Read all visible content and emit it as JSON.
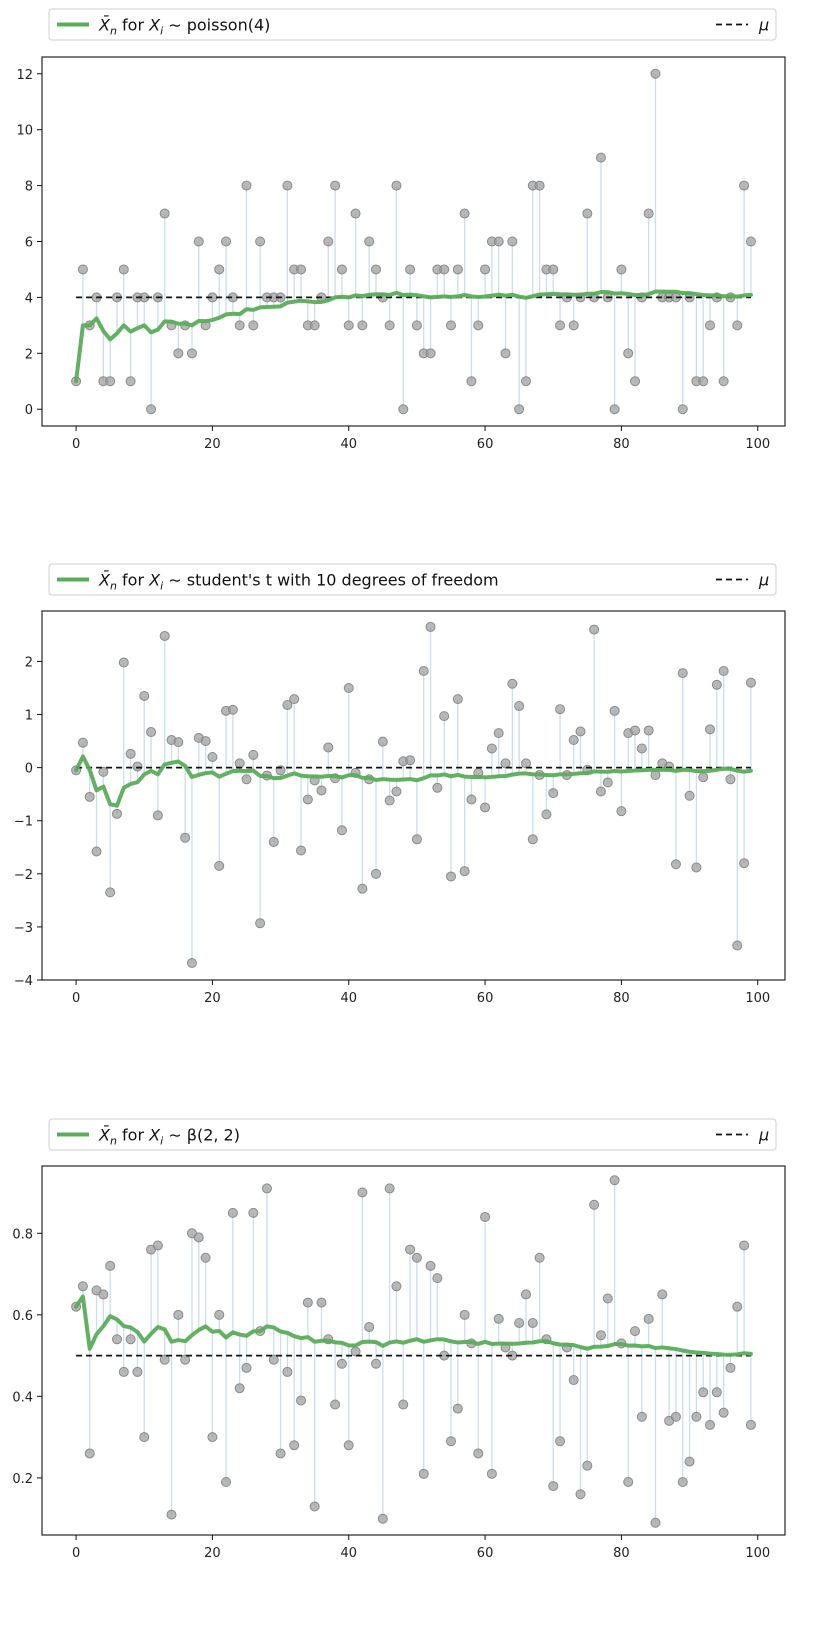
{
  "chart_data": [
    {
      "type": "scatter",
      "legend": {
        "series_label": "X̄n for Xi ~ poisson(4)",
        "prefix": "for",
        "distribution": "poisson(4)",
        "mu_label": "μ",
        "placement": "top"
      },
      "mu": 4,
      "xlim": [
        -5,
        104
      ],
      "ylim": [
        -0.6,
        12.6
      ],
      "xticks": [
        0,
        20,
        40,
        60,
        80,
        100
      ],
      "yticks": [
        0,
        2,
        4,
        6,
        8,
        10,
        12
      ],
      "colors": {
        "running_mean": "#5aac5a",
        "samples": "#9a9a9a",
        "stems": "#b8d3ea",
        "mu": "#111111"
      },
      "samples": [
        1,
        5,
        3,
        4,
        1,
        1,
        4,
        5,
        1,
        4,
        4,
        0,
        4,
        7,
        3,
        2,
        3,
        2,
        6,
        3,
        4,
        5,
        6,
        4,
        3,
        8,
        3,
        6,
        4,
        4,
        4,
        8,
        5,
        5,
        3,
        3,
        4,
        6,
        8,
        5,
        3,
        7,
        3,
        6,
        5,
        4,
        3,
        8,
        0,
        5,
        3,
        2,
        2,
        5,
        5,
        3,
        5,
        7,
        1,
        3,
        5,
        6,
        6,
        2,
        6,
        0,
        1,
        8,
        8,
        5,
        5,
        3,
        4,
        3,
        4,
        7,
        4,
        9,
        4,
        0,
        5,
        2,
        1,
        4,
        7,
        12,
        4,
        4,
        4,
        0,
        4,
        1,
        1,
        3,
        4,
        1,
        4,
        3,
        8,
        6
      ]
    },
    {
      "type": "scatter",
      "legend": {
        "series_label": "X̄n for Xi ~ student's t with 10 degrees of freedom",
        "prefix": "for",
        "distribution": "student's t with 10 degrees of freedom",
        "mu_label": "μ",
        "placement": "top"
      },
      "mu": 0,
      "xlim": [
        -5,
        104
      ],
      "ylim": [
        -4.0,
        2.95
      ],
      "xticks": [
        0,
        20,
        40,
        60,
        80,
        100
      ],
      "yticks": [
        -4,
        -3,
        -2,
        -1,
        0,
        1,
        2
      ],
      "colors": {
        "running_mean": "#5aac5a",
        "samples": "#9a9a9a",
        "stems": "#b8d3ea",
        "mu": "#111111"
      },
      "samples": [
        -0.05,
        0.47,
        -0.55,
        -1.58,
        -0.08,
        -2.35,
        -0.87,
        1.98,
        0.26,
        0.02,
        1.35,
        0.67,
        -0.9,
        2.48,
        0.52,
        0.48,
        -1.32,
        -3.68,
        0.56,
        0.5,
        0.2,
        -1.85,
        1.07,
        1.09,
        0.08,
        -0.22,
        0.24,
        -2.93,
        -0.15,
        -1.4,
        -0.05,
        1.18,
        1.29,
        -1.56,
        -0.6,
        -0.24,
        -0.43,
        0.38,
        -0.2,
        -1.18,
        1.5,
        -0.1,
        -2.28,
        -0.22,
        -2.0,
        0.49,
        -0.62,
        -0.45,
        0.12,
        0.14,
        -1.35,
        1.82,
        2.65,
        -0.38,
        0.97,
        -2.05,
        1.29,
        -1.95,
        -0.6,
        -0.1,
        -0.75,
        0.36,
        0.65,
        0.08,
        1.58,
        1.16,
        0.08,
        -1.35,
        -0.14,
        -0.88,
        -0.48,
        1.1,
        -0.14,
        0.52,
        0.68,
        -0.04,
        2.6,
        -0.45,
        -0.28,
        1.07,
        -0.82,
        0.65,
        0.7,
        0.36,
        0.7,
        -0.14,
        0.08,
        0.02,
        -1.82,
        1.78,
        -0.53,
        -1.88,
        -0.18,
        0.72,
        1.56,
        1.82,
        -0.22,
        -3.35,
        -1.8,
        1.6
      ]
    },
    {
      "type": "scatter",
      "legend": {
        "series_label": "X̄n for Xi ~ β(2, 2)",
        "prefix": "for",
        "distribution": "β(2, 2)",
        "mu_label": "μ",
        "placement": "top"
      },
      "mu": 0.5,
      "xlim": [
        -5,
        104
      ],
      "ylim": [
        0.06,
        0.965
      ],
      "xticks": [
        0,
        20,
        40,
        60,
        80,
        100
      ],
      "yticks": [
        0.2,
        0.4,
        0.6,
        0.8
      ],
      "colors": {
        "running_mean": "#5aac5a",
        "samples": "#9a9a9a",
        "stems": "#b8d3ea",
        "mu": "#111111"
      },
      "samples": [
        0.62,
        0.67,
        0.26,
        0.66,
        0.65,
        0.72,
        0.54,
        0.46,
        0.54,
        0.46,
        0.3,
        0.76,
        0.77,
        0.49,
        0.11,
        0.6,
        0.49,
        0.8,
        0.79,
        0.74,
        0.3,
        0.6,
        0.19,
        0.85,
        0.42,
        0.47,
        0.85,
        0.56,
        0.91,
        0.49,
        0.26,
        0.46,
        0.28,
        0.39,
        0.63,
        0.13,
        0.63,
        0.54,
        0.38,
        0.48,
        0.28,
        0.51,
        0.9,
        0.57,
        0.48,
        0.1,
        0.91,
        0.67,
        0.38,
        0.76,
        0.74,
        0.21,
        0.72,
        0.69,
        0.5,
        0.29,
        0.37,
        0.6,
        0.53,
        0.26,
        0.84,
        0.21,
        0.59,
        0.52,
        0.5,
        0.58,
        0.65,
        0.58,
        0.74,
        0.54,
        0.18,
        0.29,
        0.52,
        0.44,
        0.16,
        0.23,
        0.87,
        0.55,
        0.64,
        0.93,
        0.53,
        0.19,
        0.56,
        0.35,
        0.59,
        0.09,
        0.65,
        0.34,
        0.35,
        0.19,
        0.24,
        0.35,
        0.41,
        0.33,
        0.41,
        0.36,
        0.47,
        0.62,
        0.77,
        0.33
      ]
    }
  ]
}
